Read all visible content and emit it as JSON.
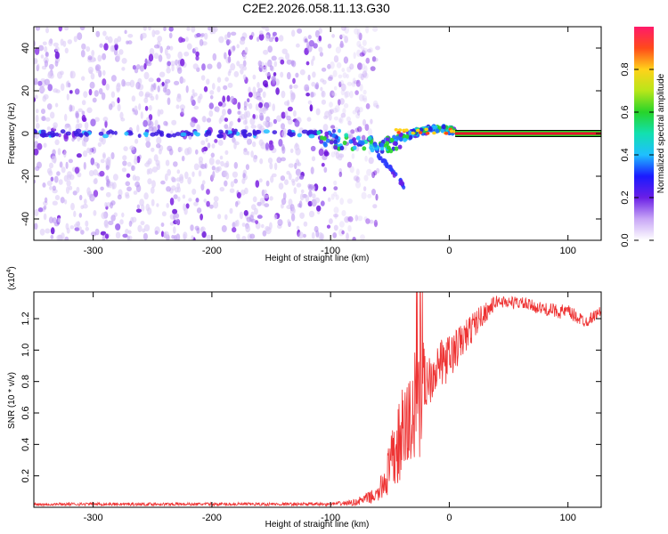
{
  "title": "C2E2.2026.058.11.13.G30",
  "colors": {
    "snr_line": "#ee3333",
    "scatter_purple": "#7a1ee0",
    "scatter_light": "#cdb2f5",
    "band_red": "#e8132c",
    "band_green": "#27d42a"
  },
  "chart_data": [
    {
      "type": "heatmap",
      "name": "spectrogram",
      "xlabel": "Height of straight line (km)",
      "ylabel": "Frequency (Hz)",
      "xlim": [
        -350,
        128
      ],
      "ylim": [
        -50,
        50
      ],
      "x_ticks": [
        -300,
        -200,
        -100,
        0,
        100
      ],
      "y_ticks": [
        -40,
        -20,
        0,
        20,
        40
      ],
      "x_tick_labels": [
        "-300",
        "-200",
        "-100",
        "0",
        "100"
      ],
      "y_tick_labels": [
        "-40",
        "-20",
        "0",
        "20",
        "40"
      ],
      "noise_region_x": [
        -350,
        -80
      ],
      "carrier_frequency_hz": 0,
      "steady_carrier_x": [
        5,
        128
      ],
      "doppler_track": [
        {
          "x": -110,
          "y": -2
        },
        {
          "x": -90,
          "y": -4
        },
        {
          "x": -70,
          "y": -5
        },
        {
          "x": -55,
          "y": -6
        },
        {
          "x": -45,
          "y": -4
        },
        {
          "x": -35,
          "y": -1
        },
        {
          "x": -25,
          "y": 1
        },
        {
          "x": -15,
          "y": 2
        },
        {
          "x": -5,
          "y": 2
        },
        {
          "x": 5,
          "y": 1
        }
      ],
      "doppler_branch": [
        {
          "x": -60,
          "y": -10
        },
        {
          "x": -50,
          "y": -16
        },
        {
          "x": -42,
          "y": -22
        },
        {
          "x": -38,
          "y": -25
        }
      ],
      "colorbar": {
        "label": "Normalized spectral amplitude",
        "range": [
          0,
          1
        ],
        "ticks": [
          0,
          0.2,
          0.4,
          0.6,
          0.8
        ],
        "tick_labels": [
          "0.0",
          "0.2",
          "0.4",
          "0.6",
          "0.8"
        ]
      }
    },
    {
      "type": "line",
      "name": "snr",
      "xlabel": "Height of straight line (km)",
      "ylabel": "SNR (10 * v/v)",
      "exponent_label": "(x10",
      "exponent_power": "4",
      "exponent_close": ")",
      "xlim": [
        -350,
        128
      ],
      "ylim": [
        0,
        1.37
      ],
      "x_ticks": [
        -300,
        -200,
        -100,
        0,
        100
      ],
      "y_ticks": [
        0.2,
        0.4,
        0.6,
        0.8,
        1.0,
        1.2
      ],
      "x_tick_labels": [
        "-300",
        "-200",
        "-100",
        "0",
        "100"
      ],
      "y_tick_labels": [
        "0.2",
        "0.4",
        "0.6",
        "0.8",
        "1.0",
        "1.2"
      ],
      "envelope": [
        {
          "x": -350,
          "y": 0.02,
          "noise": 0.01
        },
        {
          "x": -100,
          "y": 0.02,
          "noise": 0.01
        },
        {
          "x": -80,
          "y": 0.03,
          "noise": 0.02
        },
        {
          "x": -60,
          "y": 0.08,
          "noise": 0.05
        },
        {
          "x": -50,
          "y": 0.25,
          "noise": 0.18
        },
        {
          "x": -40,
          "y": 0.45,
          "noise": 0.3
        },
        {
          "x": -30,
          "y": 0.6,
          "noise": 0.35
        },
        {
          "x": -25,
          "y": 0.75,
          "noise": 0.45
        },
        {
          "x": -20,
          "y": 0.8,
          "noise": 0.2
        },
        {
          "x": -10,
          "y": 0.9,
          "noise": 0.15
        },
        {
          "x": 0,
          "y": 0.95,
          "noise": 0.15
        },
        {
          "x": 10,
          "y": 1.05,
          "noise": 0.12
        },
        {
          "x": 25,
          "y": 1.2,
          "noise": 0.08
        },
        {
          "x": 40,
          "y": 1.31,
          "noise": 0.04
        },
        {
          "x": 60,
          "y": 1.3,
          "noise": 0.04
        },
        {
          "x": 80,
          "y": 1.26,
          "noise": 0.04
        },
        {
          "x": 100,
          "y": 1.24,
          "noise": 0.05
        },
        {
          "x": 115,
          "y": 1.18,
          "noise": 0.04
        },
        {
          "x": 128,
          "y": 1.25,
          "noise": 0.03
        }
      ]
    }
  ]
}
